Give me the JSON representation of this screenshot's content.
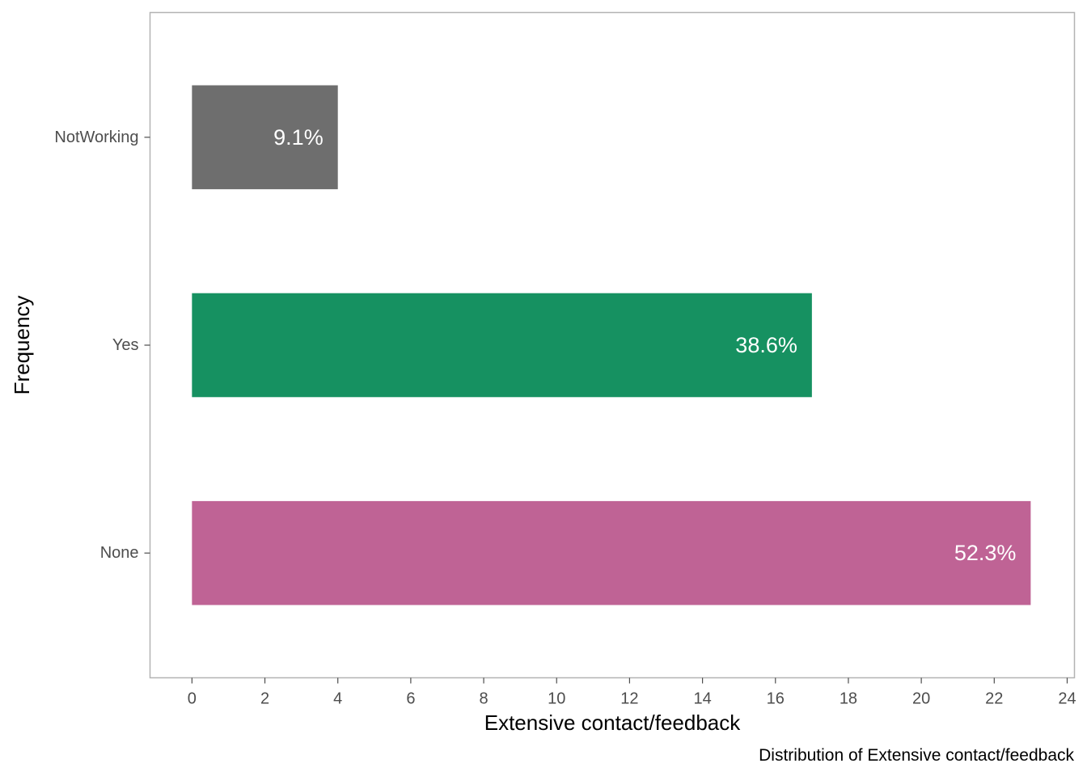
{
  "chart_data": {
    "type": "bar",
    "orientation": "horizontal",
    "categories": [
      "None",
      "Yes",
      "NotWorking"
    ],
    "values": [
      23,
      17,
      4
    ],
    "labels": [
      "52.3%",
      "38.6%",
      "9.1%"
    ],
    "colors": [
      "#BF6395",
      "#169161",
      "#6E6E6E"
    ],
    "xlabel": "Extensive contact/feedback",
    "ylabel": "Frequency",
    "caption": "Distribution of Extensive contact/feedback",
    "xlim": [
      -1.15,
      24.2
    ],
    "xticks": [
      0,
      2,
      4,
      6,
      8,
      10,
      12,
      14,
      16,
      18,
      20,
      22,
      24
    ],
    "grid": false,
    "legend": "none",
    "label_color": "#ffffff",
    "panel_border_color": "#b3b3b3",
    "tick_color": "#4d4d4d"
  }
}
